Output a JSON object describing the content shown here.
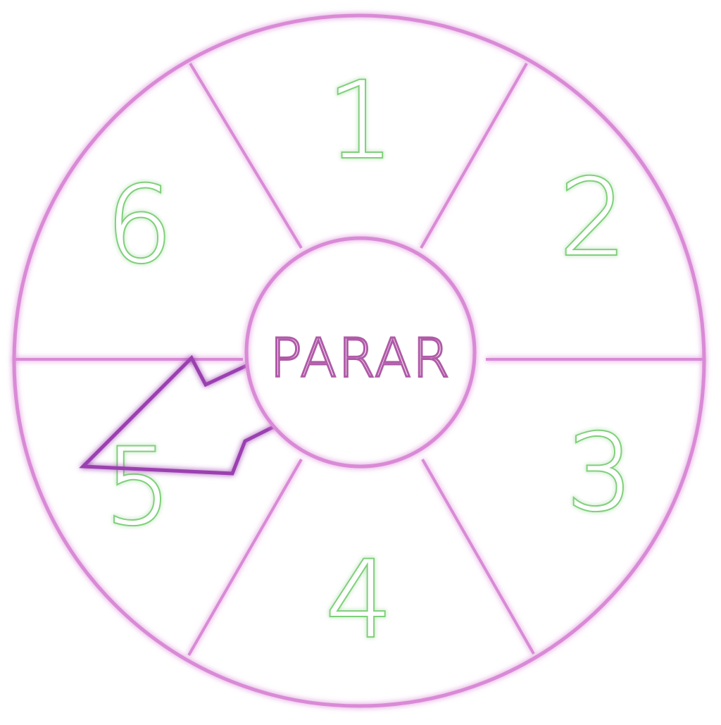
{
  "wheel": {
    "segments": [
      {
        "label": "1"
      },
      {
        "label": "2"
      },
      {
        "label": "3"
      },
      {
        "label": "4"
      },
      {
        "label": "5"
      },
      {
        "label": "6"
      }
    ],
    "stop_button": {
      "label": "PARAR"
    },
    "pointer": {
      "icon": "arrow-pointer-icon",
      "pointing_at_segment": "5"
    }
  },
  "colors": {
    "neon_pink": "#d98ad6",
    "neon_pink_dark": "#b05aa8",
    "neon_purple": "#9b3fb0",
    "neon_green": "#7fd07a",
    "background": "#ffffff"
  }
}
